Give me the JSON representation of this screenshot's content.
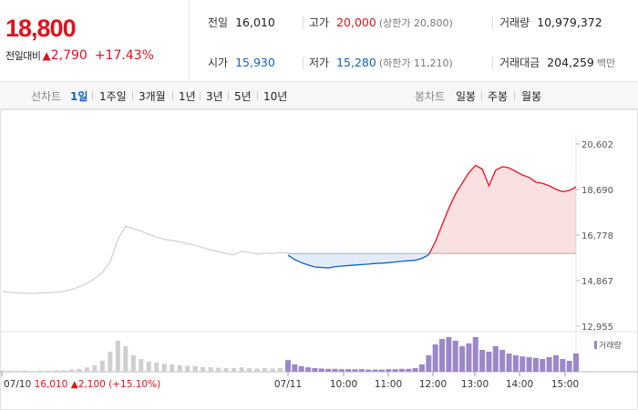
{
  "summary": {
    "current_price": "18,800",
    "change_label": "전일대비",
    "change_arrow": "▲",
    "change_value": "2,790",
    "change_percent": "+17.43%",
    "prev_close_label": "전일",
    "prev_close": "16,010",
    "high_label": "고가",
    "high": "20,000",
    "upper_limit": "(상한가 20,800)",
    "volume_label": "거래량",
    "volume": "10,979,372",
    "open_label": "시가",
    "open": "15,930",
    "low_label": "저가",
    "low": "15,280",
    "lower_limit": "(하한가 11,210)",
    "amount_label": "거래대금",
    "amount": "204,259",
    "amount_unit": "백만"
  },
  "toolbar": {
    "line_chart_label": "선차트",
    "periods": [
      "1일",
      "1주일",
      "3개월",
      "1년",
      "3년",
      "5년",
      "10년"
    ],
    "active_period": "1일",
    "candle_chart_label": "봉차트",
    "candles": [
      "일봉",
      "주봉",
      "월봉"
    ]
  },
  "colors": {
    "up": "#e2121c",
    "down": "#1261c4",
    "prev_day_line": "#cfcfcf",
    "volume": "#9b87c9"
  },
  "chart_data": {
    "type": "line",
    "reference_price": 16010,
    "ylim": [
      12955,
      20602
    ],
    "yticks": [
      "20,602",
      "18,690",
      "16,778",
      "14,867",
      "12,955"
    ],
    "xtick_labels": [
      "07/11",
      "10:00",
      "11:00",
      "12:00",
      "13:00",
      "14:00",
      "15:00"
    ],
    "prev_day": {
      "label": "07/10 16,010 ▲2,100 (+15.10%)",
      "label_date": "07/10",
      "label_price": "16,010",
      "label_change": "▲2,100 (+15.10%)",
      "values": [
        14420,
        14380,
        14350,
        14340,
        14330,
        14350,
        14360,
        14380,
        14420,
        14500,
        14600,
        14750,
        14950,
        15200,
        15650,
        16600,
        17150,
        17050,
        16950,
        16800,
        16700,
        16600,
        16550,
        16500,
        16420,
        16350,
        16250,
        16150,
        16080,
        16000,
        15950,
        16100,
        16050,
        15980,
        16020,
        16000,
        16050,
        16030
      ]
    },
    "today": {
      "values": [
        15930,
        15750,
        15620,
        15520,
        15440,
        15420,
        15400,
        15450,
        15480,
        15500,
        15520,
        15540,
        15560,
        15590,
        15600,
        15620,
        15650,
        15680,
        15700,
        15720,
        15800,
        15950,
        16500,
        17200,
        17900,
        18500,
        18950,
        19400,
        19700,
        19550,
        18850,
        19500,
        19650,
        19600,
        19450,
        19300,
        19200,
        19000,
        18950,
        18850,
        18700,
        18600,
        18650,
        18800
      ],
      "high": 20000,
      "low": 15280,
      "last": 18800
    },
    "volume_legend": "거래량",
    "volume": {
      "prev_day": [
        0.04,
        0.03,
        0.03,
        0.03,
        0.02,
        0.03,
        0.03,
        0.04,
        0.04,
        0.06,
        0.08,
        0.12,
        0.18,
        0.3,
        0.55,
        0.85,
        0.7,
        0.45,
        0.35,
        0.28,
        0.25,
        0.22,
        0.2,
        0.18,
        0.16,
        0.15,
        0.13,
        0.12,
        0.11,
        0.1,
        0.1,
        0.12,
        0.1,
        0.09,
        0.1,
        0.09,
        0.1,
        0.12
      ],
      "today": [
        0.32,
        0.2,
        0.15,
        0.12,
        0.1,
        0.09,
        0.08,
        0.08,
        0.07,
        0.07,
        0.07,
        0.07,
        0.06,
        0.06,
        0.06,
        0.07,
        0.07,
        0.08,
        0.08,
        0.1,
        0.2,
        0.45,
        0.75,
        0.9,
        0.95,
        0.85,
        0.7,
        0.78,
        0.95,
        0.6,
        0.55,
        0.7,
        0.6,
        0.5,
        0.45,
        0.42,
        0.4,
        0.38,
        0.35,
        0.4,
        0.45,
        0.35,
        0.3,
        0.5
      ]
    }
  }
}
